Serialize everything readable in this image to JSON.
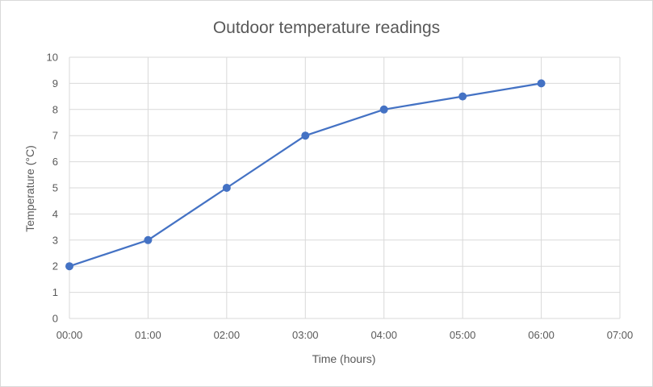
{
  "chart_data": {
    "type": "line",
    "title": "Outdoor temperature readings",
    "xlabel": "Time (hours)",
    "ylabel": "Temperature (°C)",
    "x_ticks": [
      "00:00",
      "01:00",
      "02:00",
      "03:00",
      "04:00",
      "05:00",
      "06:00",
      "07:00"
    ],
    "y_ticks": [
      "0",
      "1",
      "2",
      "3",
      "4",
      "5",
      "6",
      "7",
      "8",
      "9",
      "10"
    ],
    "xlim": [
      0,
      7
    ],
    "ylim": [
      0,
      10
    ],
    "grid": true,
    "series": [
      {
        "x": [
          0,
          1,
          2,
          3,
          4,
          5,
          6
        ],
        "values": [
          2,
          3,
          5,
          7,
          8,
          8.5,
          9
        ],
        "color": "#4472c4"
      }
    ]
  }
}
